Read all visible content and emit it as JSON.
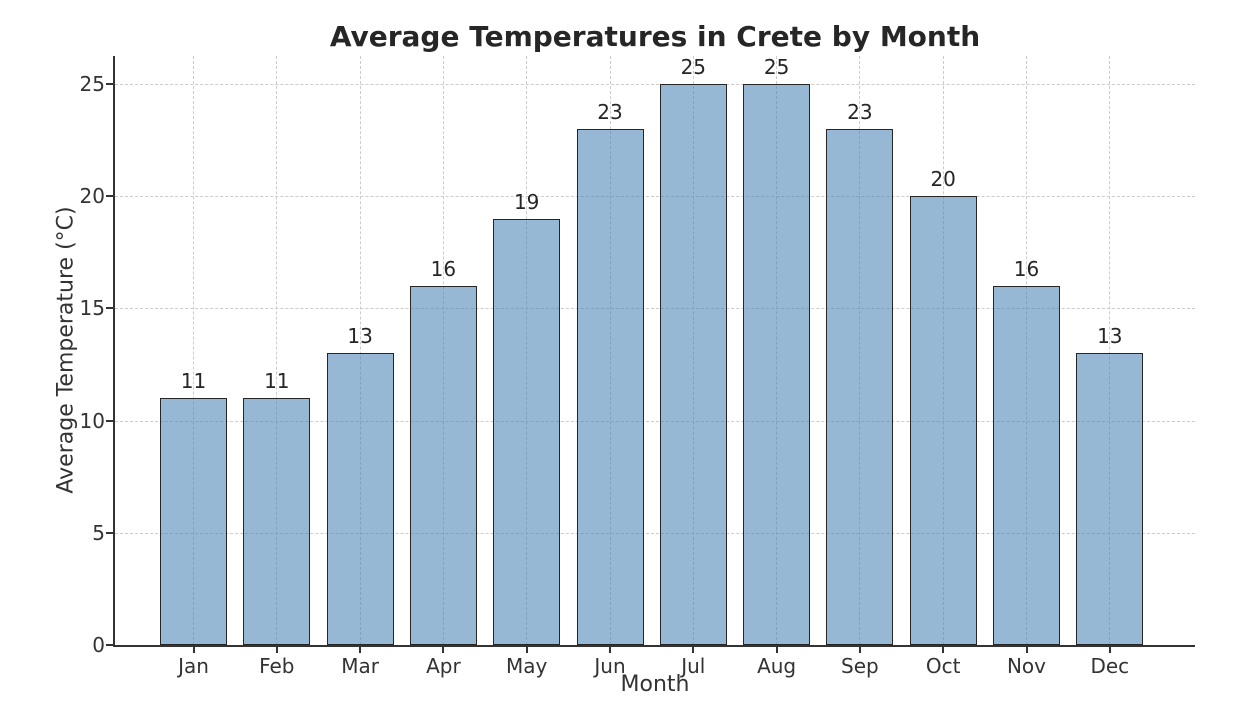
{
  "chart_data": {
    "type": "bar",
    "title": "Average Temperatures in Crete by Month",
    "xlabel": "Month",
    "ylabel": "Average Temperature (°C)",
    "categories": [
      "Jan",
      "Feb",
      "Mar",
      "Apr",
      "May",
      "Jun",
      "Jul",
      "Aug",
      "Sep",
      "Oct",
      "Nov",
      "Dec"
    ],
    "values": [
      11,
      11,
      13,
      16,
      19,
      23,
      25,
      25,
      23,
      20,
      16,
      13
    ],
    "ylim": [
      0,
      26.25
    ],
    "yticks": [
      0,
      5,
      10,
      15,
      20,
      25
    ],
    "grid": true,
    "grid_style": "dashed",
    "legend_position": "none",
    "colors": {
      "bar_fill": "#4682b4",
      "bar_fill_opacity": 0.57,
      "bar_edge": "#262626",
      "grid": "#cccccc",
      "spine": "#333333",
      "tick_label": "#333333",
      "title": "#262626"
    }
  }
}
